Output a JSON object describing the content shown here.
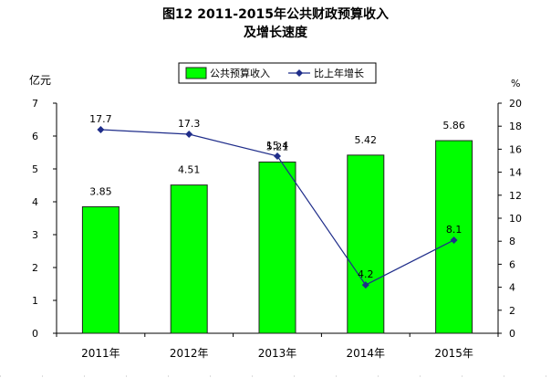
{
  "chart_data": {
    "type": "bar+line",
    "title_line1": "图12  2011-2015年公共财政预算收入",
    "title_line2": "及增长速度",
    "categories": [
      "2011年",
      "2012年",
      "2013年",
      "2014年",
      "2015年"
    ],
    "y_left_unit": "亿元",
    "y_right_unit": "%",
    "y_left_range": [
      0,
      7
    ],
    "y_left_ticks": [
      "0",
      "1",
      "2",
      "3",
      "4",
      "5",
      "6",
      "7"
    ],
    "y_right_range": [
      0,
      20
    ],
    "y_right_ticks": [
      "0",
      "2",
      "4",
      "6",
      "8",
      "10",
      "12",
      "14",
      "16",
      "18",
      "20"
    ],
    "series": [
      {
        "name": "公共预算收入",
        "type": "bar",
        "axis": "left",
        "values": [
          3.85,
          4.51,
          5.21,
          5.42,
          5.86
        ],
        "labels": [
          "3.85",
          "4.51",
          "5.21",
          "5.42",
          "5.86"
        ],
        "color": "#00ff00"
      },
      {
        "name": "比上年增长",
        "type": "line",
        "axis": "right",
        "values": [
          17.7,
          17.3,
          15.4,
          4.2,
          8.1
        ],
        "labels": [
          "17.7",
          "17.3",
          "15.4",
          "4.2",
          "8.1"
        ],
        "color": "#1f2d8a"
      }
    ],
    "legend_position": "top-center",
    "grid": false
  }
}
